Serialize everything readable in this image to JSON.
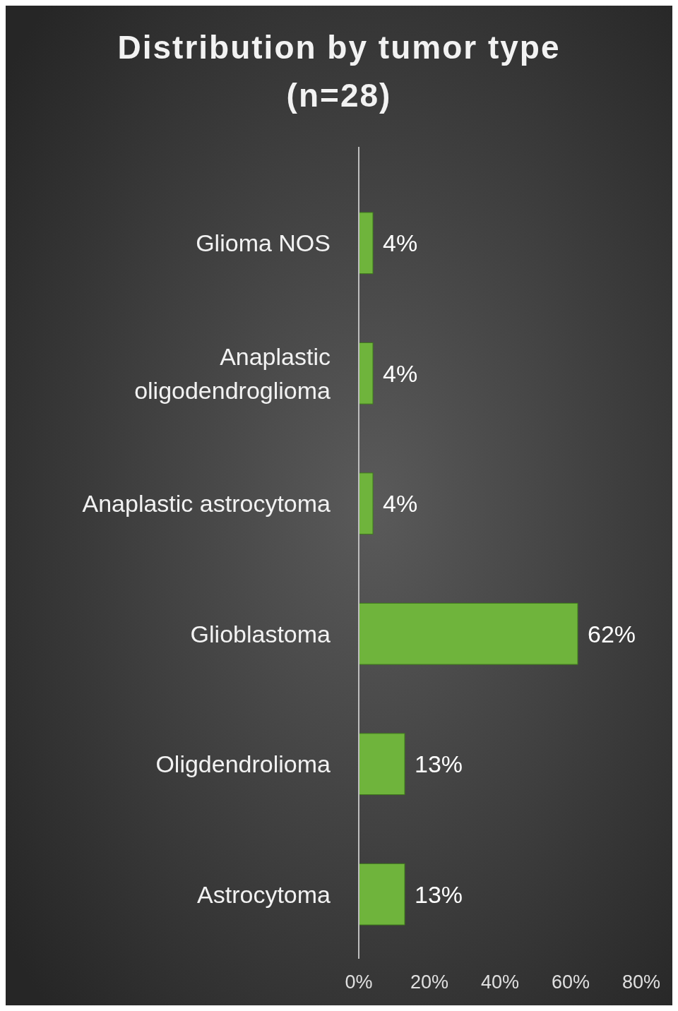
{
  "chart_data": {
    "type": "bar",
    "orientation": "horizontal",
    "title": "Distribution by tumor type (n=28)",
    "categories": [
      "Glioma NOS",
      "Anaplastic oligodendroglioma",
      "Anaplastic astrocytoma",
      "Glioblastoma",
      "Oligdendrolioma",
      "Astrocytoma"
    ],
    "values": [
      4,
      4,
      4,
      62,
      13,
      13
    ],
    "value_labels": [
      "4%",
      "4%",
      "4%",
      "62%",
      "13%",
      "13%"
    ],
    "color": "#6fb43c",
    "xlim": [
      0,
      80
    ],
    "xticks": [
      {
        "value": 0,
        "label": "0%"
      },
      {
        "value": 20,
        "label": "20%"
      },
      {
        "value": 40,
        "label": "40%"
      },
      {
        "value": 60,
        "label": "60%"
      },
      {
        "value": 80,
        "label": "80%"
      }
    ],
    "grid": false
  }
}
